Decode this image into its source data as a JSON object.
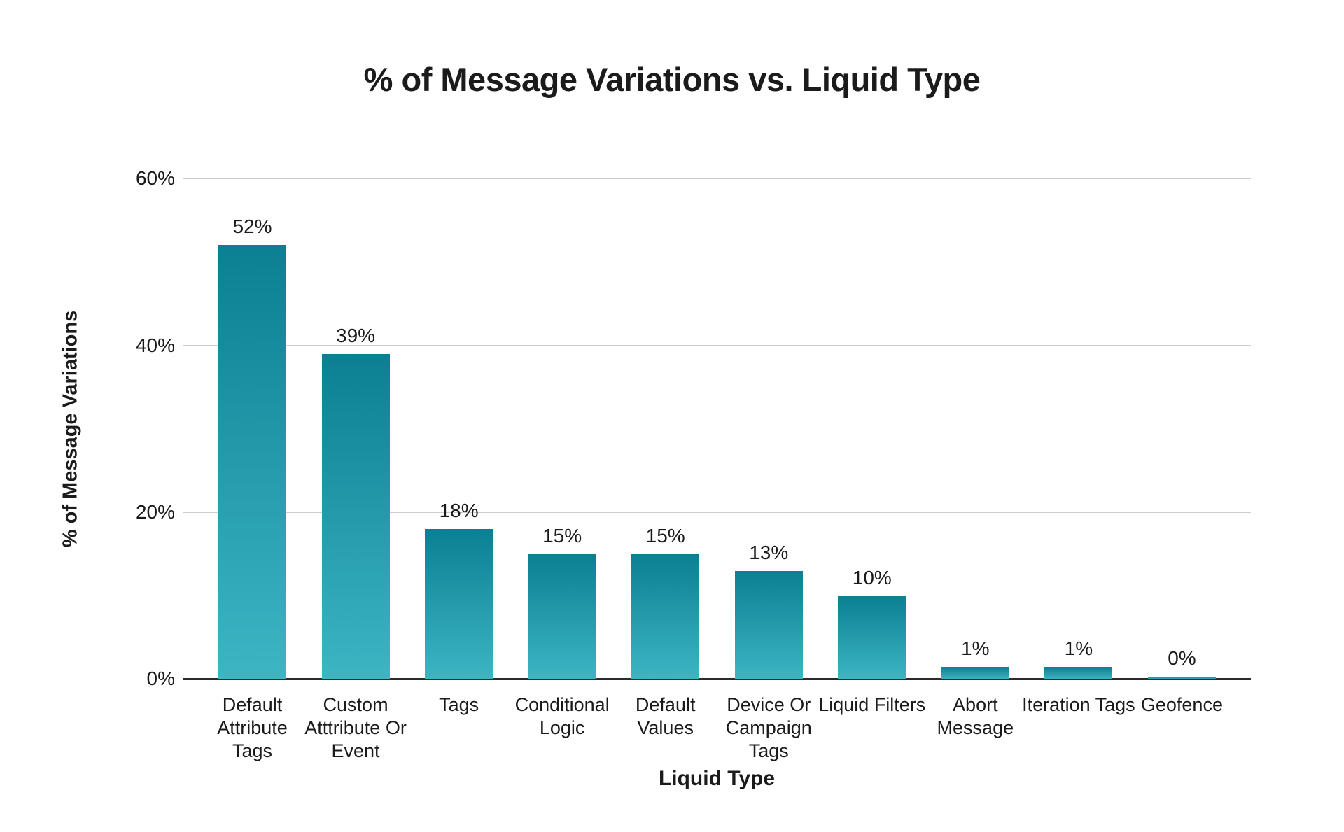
{
  "chart_data": {
    "type": "bar",
    "title": "% of Message Variations vs. Liquid Type",
    "xlabel": "Liquid Type",
    "ylabel": "% of Message Variations",
    "categories": [
      "Default Attribute Tags",
      "Custom Atttribute Or Event",
      "Tags",
      "Conditional Logic",
      "Default Values",
      "Device Or Campaign Tags",
      "Liquid Filters",
      "Abort Message",
      "Iteration Tags",
      "Geofence"
    ],
    "values": [
      52,
      39,
      18,
      15,
      15,
      13,
      10,
      1,
      1,
      0
    ],
    "value_labels": [
      "52%",
      "39%",
      "18%",
      "15%",
      "15%",
      "13%",
      "10%",
      "1%",
      "1%",
      "0%"
    ],
    "y_ticks": [
      {
        "label": "0%",
        "value": 0
      },
      {
        "label": "20%",
        "value": 20
      },
      {
        "label": "40%",
        "value": 40
      },
      {
        "label": "60%",
        "value": 60
      }
    ],
    "ylim": [
      0,
      60
    ],
    "grid": "horizontal",
    "legend": "none",
    "colors": {
      "bar_gradient_top": "#0c7f93",
      "bar_gradient_bottom": "#3db5c3",
      "gridline": "#cdcdcd",
      "axis_line": "#2b2b2b",
      "text": "#1a1a1a",
      "background": "#ffffff"
    }
  }
}
